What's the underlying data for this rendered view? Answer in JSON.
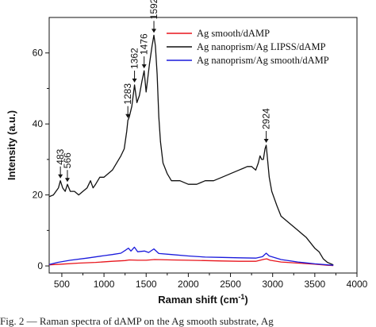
{
  "chart_data": {
    "type": "line",
    "title": "",
    "xlabel": "Raman shift (cm",
    "xlabel_sup": "-1",
    "xlabel_suffix": ")",
    "ylabel": "Intensity (a.u.)",
    "xlim": [
      350,
      4000
    ],
    "ylim": [
      -2,
      70
    ],
    "xticks": [
      500,
      1000,
      1500,
      2000,
      2500,
      3000,
      3500,
      4000
    ],
    "yticks": [
      0,
      20,
      40,
      60
    ],
    "grid": false,
    "legend_position": "top-right",
    "series": [
      {
        "name": "Ag smooth/dAMP",
        "color": "#e8141b",
        "x": [
          350,
          500,
          700,
          900,
          1100,
          1250,
          1300,
          1400,
          1500,
          1600,
          1800,
          2000,
          2200,
          2400,
          2600,
          2800,
          2900,
          2930,
          2970,
          3100,
          3300,
          3500,
          3650,
          3720
        ],
        "y": [
          0.3,
          0.5,
          0.8,
          1.0,
          1.3,
          1.5,
          1.7,
          1.6,
          1.6,
          1.8,
          1.7,
          1.6,
          1.5,
          1.4,
          1.3,
          1.3,
          1.9,
          2.0,
          1.6,
          1.1,
          0.8,
          0.5,
          0.2,
          0.1
        ]
      },
      {
        "name": "Ag nanoprism/Ag LIPSS/dAMP",
        "color": "#111111",
        "x": [
          350,
          400,
          460,
          483,
          510,
          540,
          566,
          600,
          650,
          700,
          750,
          800,
          840,
          870,
          900,
          950,
          1000,
          1050,
          1100,
          1150,
          1200,
          1240,
          1270,
          1283,
          1300,
          1330,
          1362,
          1390,
          1420,
          1450,
          1476,
          1500,
          1540,
          1570,
          1592,
          1610,
          1630,
          1650,
          1670,
          1700,
          1750,
          1800,
          1900,
          2000,
          2100,
          2200,
          2300,
          2400,
          2500,
          2600,
          2650,
          2700,
          2750,
          2800,
          2830,
          2850,
          2870,
          2890,
          2910,
          2924,
          2940,
          2960,
          2990,
          3050,
          3100,
          3200,
          3300,
          3400,
          3500,
          3550,
          3600,
          3650,
          3700,
          3720
        ],
        "y": [
          19.5,
          20,
          22,
          24,
          22,
          21,
          23,
          21,
          21,
          20,
          21,
          22,
          24,
          22,
          23,
          25,
          25,
          26,
          27,
          29,
          31,
          33,
          38,
          41,
          42,
          45,
          51,
          46,
          48,
          52,
          55,
          49,
          57,
          62,
          65,
          62,
          54,
          42,
          35,
          29,
          26,
          24,
          24,
          23,
          23,
          24,
          24,
          25,
          26,
          27,
          27.5,
          28,
          28,
          27,
          29,
          31,
          30,
          30,
          33,
          34,
          30,
          25,
          21,
          17,
          14,
          12,
          10,
          8,
          5,
          4,
          2,
          1,
          0.5,
          0.3
        ]
      },
      {
        "name": "Ag nanoprism/Ag smooth/dAMP",
        "color": "#1a1adc",
        "x": [
          350,
          450,
          600,
          800,
          1000,
          1100,
          1200,
          1260,
          1290,
          1320,
          1360,
          1400,
          1480,
          1530,
          1592,
          1650,
          1800,
          2000,
          2200,
          2400,
          2600,
          2800,
          2880,
          2924,
          2960,
          3100,
          3300,
          3500,
          3650,
          3720
        ],
        "y": [
          0.4,
          1.0,
          1.6,
          2.2,
          2.9,
          3.2,
          3.6,
          4.5,
          5.0,
          4.2,
          5.3,
          4.0,
          4.2,
          3.8,
          4.8,
          3.5,
          3.2,
          2.8,
          2.5,
          2.4,
          2.3,
          2.2,
          2.6,
          3.6,
          2.8,
          1.8,
          1.1,
          0.6,
          0.3,
          0.2
        ]
      }
    ],
    "annotations": [
      {
        "label": "483",
        "x": 483,
        "y": 24
      },
      {
        "label": "566",
        "x": 566,
        "y": 23
      },
      {
        "label": "1283",
        "x": 1283,
        "y": 41
      },
      {
        "label": "1362",
        "x": 1362,
        "y": 51
      },
      {
        "label": "1476",
        "x": 1476,
        "y": 55
      },
      {
        "label": "1592",
        "x": 1592,
        "y": 65
      },
      {
        "label": "2924",
        "x": 2924,
        "y": 34
      }
    ]
  },
  "caption": "Fig. 2 — Raman spectra of dAMP on the Ag smooth substrate, Ag"
}
